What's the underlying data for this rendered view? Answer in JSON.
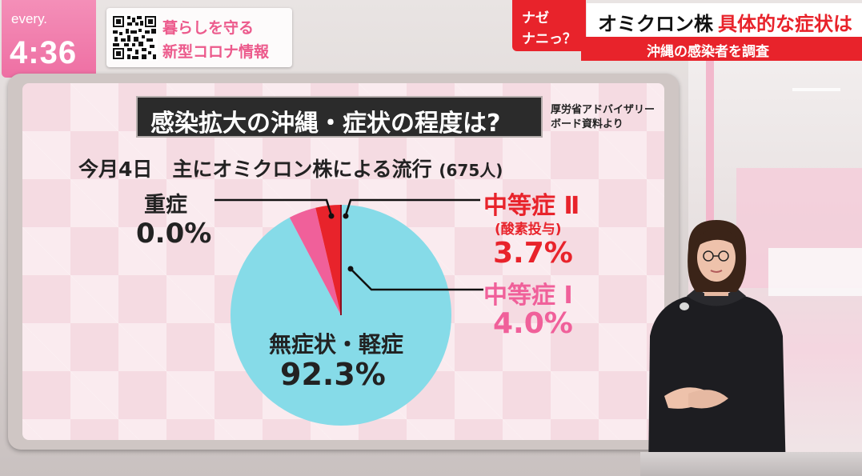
{
  "brand": {
    "logo": "every.",
    "time": "4:36",
    "accent": "#ee6fa3"
  },
  "info_badge": {
    "icon": "qr-code-icon",
    "line1": "暮らしを守る",
    "line2": "新型コロナ情報"
  },
  "headline": {
    "naze_line1": "ナゼ",
    "naze_line2": "ナニっ？",
    "main_part1": "オミクロン株",
    "main_part2": "具体的な症状は",
    "subhead": "沖縄の感染者を調査",
    "red": "#e8232b"
  },
  "chart_data": {
    "type": "pie",
    "title": "感染拡大の沖縄・症状の程度は?",
    "source_line1": "厚労省アドバイザリー",
    "source_line2": "ボード資料より",
    "subtitle": "今月4日　主にオミクロン株による流行",
    "subtitle_count": "(675人)",
    "start_angle_deg": 0,
    "direction": "clockwise",
    "slices": [
      {
        "key": "mild",
        "name": "無症状・軽症",
        "value": 92.3,
        "label": "92.3%",
        "color": "#86dbe8"
      },
      {
        "key": "moderate1",
        "name": "中等症 Ⅰ",
        "value": 4.0,
        "label": "4.0%",
        "color": "#f0609a"
      },
      {
        "key": "moderate2",
        "name": "中等症 Ⅱ",
        "note": "(酸素投与)",
        "value": 3.7,
        "label": "3.7%",
        "color": "#e8232b"
      },
      {
        "key": "severe",
        "name": "重症",
        "value": 0.0,
        "label": "0.0%",
        "color": "#8a1020"
      }
    ]
  }
}
